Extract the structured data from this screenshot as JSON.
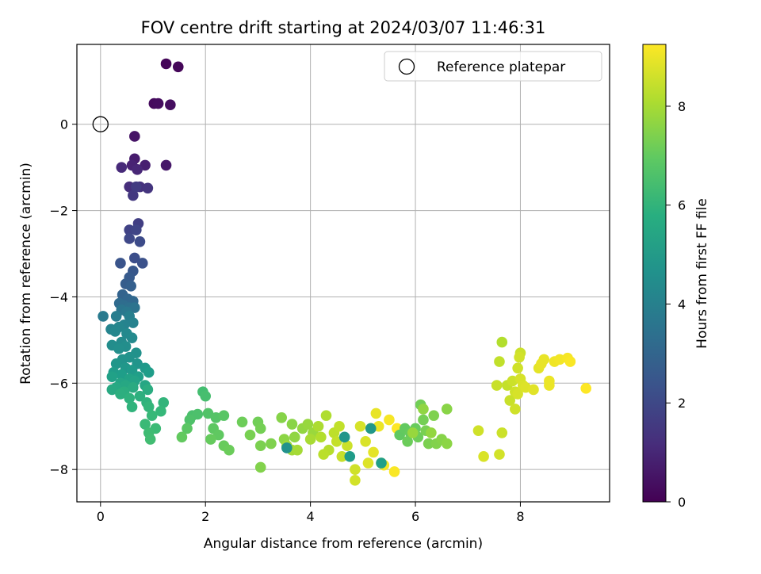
{
  "chart_data": {
    "type": "scatter",
    "title": "FOV centre drift starting at 2024/03/07 11:46:31",
    "xlabel": "Angular distance from reference (arcmin)",
    "ylabel": "Rotation from reference (arcmin)",
    "xlim": [
      -0.45,
      9.7
    ],
    "ylim": [
      -8.75,
      1.85
    ],
    "xticks": [
      0,
      2,
      4,
      6,
      8
    ],
    "yticks": [
      -8,
      -6,
      -4,
      -2,
      0
    ],
    "xtick_labels": [
      "0",
      "2",
      "4",
      "6",
      "8"
    ],
    "ytick_labels": [
      "−8",
      "−6",
      "−4",
      "−2",
      "0"
    ],
    "grid": true,
    "legend": {
      "position": "top-right",
      "entries": [
        "Reference platepar"
      ]
    },
    "colorbar": {
      "label": "Hours from first FF file",
      "colormap": "viridis",
      "range": [
        0,
        9.25
      ],
      "ticks": [
        0,
        2,
        4,
        6,
        8
      ],
      "tick_labels": [
        "0",
        "2",
        "4",
        "6",
        "8"
      ]
    },
    "reference_point": {
      "x": 0,
      "y": 0,
      "label": "Reference platepar"
    },
    "series": [
      {
        "color_by": "Hours from first FF file",
        "points": [
          {
            "x": 1.25,
            "y": 1.4,
            "c": 0.1
          },
          {
            "x": 1.48,
            "y": 1.33,
            "c": 0.15
          },
          {
            "x": 1.02,
            "y": 0.48,
            "c": 0.25
          },
          {
            "x": 1.1,
            "y": 0.48,
            "c": 0.3
          },
          {
            "x": 1.33,
            "y": 0.45,
            "c": 0.35
          },
          {
            "x": 0.65,
            "y": -0.28,
            "c": 0.5
          },
          {
            "x": 1.25,
            "y": -0.95,
            "c": 0.6
          },
          {
            "x": 0.65,
            "y": -0.8,
            "c": 0.7
          },
          {
            "x": 0.85,
            "y": -0.95,
            "c": 0.8
          },
          {
            "x": 0.6,
            "y": -0.95,
            "c": 0.9
          },
          {
            "x": 0.7,
            "y": -1.05,
            "c": 1.0
          },
          {
            "x": 0.4,
            "y": -1.0,
            "c": 1.1
          },
          {
            "x": 0.55,
            "y": -1.45,
            "c": 1.2
          },
          {
            "x": 0.75,
            "y": -1.45,
            "c": 1.3
          },
          {
            "x": 0.9,
            "y": -1.48,
            "c": 1.4
          },
          {
            "x": 0.62,
            "y": -1.65,
            "c": 1.5
          },
          {
            "x": 0.68,
            "y": -1.45,
            "c": 1.6
          },
          {
            "x": 0.72,
            "y": -2.3,
            "c": 1.7
          },
          {
            "x": 0.55,
            "y": -2.45,
            "c": 1.8
          },
          {
            "x": 0.68,
            "y": -2.45,
            "c": 1.9
          },
          {
            "x": 0.55,
            "y": -2.65,
            "c": 2.0
          },
          {
            "x": 0.75,
            "y": -2.72,
            "c": 2.1
          },
          {
            "x": 0.65,
            "y": -3.1,
            "c": 2.2
          },
          {
            "x": 0.8,
            "y": -3.22,
            "c": 2.3
          },
          {
            "x": 0.38,
            "y": -3.22,
            "c": 2.4
          },
          {
            "x": 0.62,
            "y": -3.4,
            "c": 2.5
          },
          {
            "x": 0.55,
            "y": -3.55,
            "c": 2.6
          },
          {
            "x": 0.48,
            "y": -3.7,
            "c": 2.7
          },
          {
            "x": 0.58,
            "y": -3.75,
            "c": 2.8
          },
          {
            "x": 0.42,
            "y": -3.95,
            "c": 2.9
          },
          {
            "x": 0.52,
            "y": -4.05,
            "c": 3.0
          },
          {
            "x": 0.62,
            "y": -4.1,
            "c": 3.1
          },
          {
            "x": 0.36,
            "y": -4.15,
            "c": 3.2
          },
          {
            "x": 0.45,
            "y": -4.2,
            "c": 3.3
          },
          {
            "x": 0.55,
            "y": -4.25,
            "c": 3.4
          },
          {
            "x": 0.65,
            "y": -4.25,
            "c": 3.5
          },
          {
            "x": 0.4,
            "y": -4.3,
            "c": 3.6
          },
          {
            "x": 0.5,
            "y": -4.35,
            "c": 3.7
          },
          {
            "x": 0.05,
            "y": -4.45,
            "c": 3.8
          },
          {
            "x": 0.3,
            "y": -4.45,
            "c": 3.9
          },
          {
            "x": 0.55,
            "y": -4.45,
            "c": 4.0
          },
          {
            "x": 0.62,
            "y": -4.6,
            "c": 4.1
          },
          {
            "x": 0.45,
            "y": -4.65,
            "c": 4.15
          },
          {
            "x": 0.2,
            "y": -4.75,
            "c": 4.2
          },
          {
            "x": 0.35,
            "y": -4.7,
            "c": 4.25
          },
          {
            "x": 0.28,
            "y": -4.8,
            "c": 4.3
          },
          {
            "x": 0.5,
            "y": -4.85,
            "c": 4.35
          },
          {
            "x": 0.6,
            "y": -4.95,
            "c": 4.4
          },
          {
            "x": 0.4,
            "y": -5.05,
            "c": 4.45
          },
          {
            "x": 0.22,
            "y": -5.12,
            "c": 4.5
          },
          {
            "x": 0.48,
            "y": -5.15,
            "c": 4.55
          },
          {
            "x": 0.35,
            "y": -5.2,
            "c": 4.6
          },
          {
            "x": 0.68,
            "y": -5.3,
            "c": 4.65
          },
          {
            "x": 0.55,
            "y": -5.4,
            "c": 4.7
          },
          {
            "x": 0.42,
            "y": -5.45,
            "c": 4.75
          },
          {
            "x": 0.7,
            "y": -5.55,
            "c": 4.8
          },
          {
            "x": 0.3,
            "y": -5.55,
            "c": 4.85
          },
          {
            "x": 0.48,
            "y": -5.65,
            "c": 4.9
          },
          {
            "x": 0.85,
            "y": -5.65,
            "c": 4.95
          },
          {
            "x": 0.6,
            "y": -5.7,
            "c": 5.0
          },
          {
            "x": 0.25,
            "y": -5.75,
            "c": 5.05
          },
          {
            "x": 0.92,
            "y": -5.75,
            "c": 5.1
          },
          {
            "x": 0.4,
            "y": -5.8,
            "c": 5.15
          },
          {
            "x": 0.72,
            "y": -5.85,
            "c": 5.2
          },
          {
            "x": 0.22,
            "y": -5.85,
            "c": 5.25
          },
          {
            "x": 0.55,
            "y": -5.9,
            "c": 5.3
          },
          {
            "x": 0.65,
            "y": -5.95,
            "c": 5.35
          },
          {
            "x": 0.38,
            "y": -6.0,
            "c": 5.4
          },
          {
            "x": 0.85,
            "y": -6.05,
            "c": 5.45
          },
          {
            "x": 0.48,
            "y": -6.05,
            "c": 5.5
          },
          {
            "x": 0.3,
            "y": -6.1,
            "c": 5.55
          },
          {
            "x": 0.22,
            "y": -6.15,
            "c": 5.6
          },
          {
            "x": 0.62,
            "y": -6.1,
            "c": 5.65
          },
          {
            "x": 0.9,
            "y": -6.15,
            "c": 5.7
          },
          {
            "x": 0.45,
            "y": -6.2,
            "c": 5.75
          },
          {
            "x": 0.38,
            "y": -6.25,
            "c": 5.8
          },
          {
            "x": 0.75,
            "y": -6.3,
            "c": 5.85
          },
          {
            "x": 0.55,
            "y": -6.35,
            "c": 5.9
          },
          {
            "x": 0.88,
            "y": -6.45,
            "c": 5.95
          },
          {
            "x": 0.6,
            "y": -6.55,
            "c": 6.0
          },
          {
            "x": 1.2,
            "y": -6.45,
            "c": 6.05
          },
          {
            "x": 0.92,
            "y": -6.55,
            "c": 6.1
          },
          {
            "x": 1.15,
            "y": -6.65,
            "c": 6.15
          },
          {
            "x": 0.98,
            "y": -6.75,
            "c": 6.2
          },
          {
            "x": 0.85,
            "y": -6.95,
            "c": 6.25
          },
          {
            "x": 1.05,
            "y": -7.05,
            "c": 6.3
          },
          {
            "x": 0.92,
            "y": -7.15,
            "c": 6.35
          },
          {
            "x": 0.95,
            "y": -7.3,
            "c": 6.4
          },
          {
            "x": 1.95,
            "y": -6.2,
            "c": 6.45
          },
          {
            "x": 2.0,
            "y": -6.3,
            "c": 6.5
          },
          {
            "x": 1.75,
            "y": -6.75,
            "c": 6.55
          },
          {
            "x": 1.85,
            "y": -6.72,
            "c": 6.6
          },
          {
            "x": 1.7,
            "y": -6.85,
            "c": 6.65
          },
          {
            "x": 2.05,
            "y": -6.7,
            "c": 6.7
          },
          {
            "x": 2.2,
            "y": -6.8,
            "c": 6.75
          },
          {
            "x": 2.35,
            "y": -6.75,
            "c": 6.8
          },
          {
            "x": 1.65,
            "y": -7.05,
            "c": 6.85
          },
          {
            "x": 2.15,
            "y": -7.05,
            "c": 6.9
          },
          {
            "x": 2.25,
            "y": -7.2,
            "c": 6.95
          },
          {
            "x": 1.55,
            "y": -7.25,
            "c": 7.0
          },
          {
            "x": 2.1,
            "y": -7.3,
            "c": 7.05
          },
          {
            "x": 2.35,
            "y": -7.45,
            "c": 7.1
          },
          {
            "x": 2.45,
            "y": -7.55,
            "c": 7.15
          },
          {
            "x": 2.7,
            "y": -6.9,
            "c": 7.2
          },
          {
            "x": 3.0,
            "y": -6.9,
            "c": 7.25
          },
          {
            "x": 3.05,
            "y": -7.05,
            "c": 7.3
          },
          {
            "x": 2.85,
            "y": -7.2,
            "c": 7.35
          },
          {
            "x": 3.05,
            "y": -7.45,
            "c": 7.4
          },
          {
            "x": 3.25,
            "y": -7.4,
            "c": 7.45
          },
          {
            "x": 3.05,
            "y": -7.95,
            "c": 7.5
          },
          {
            "x": 3.45,
            "y": -6.8,
            "c": 7.55
          },
          {
            "x": 3.65,
            "y": -6.95,
            "c": 7.6
          },
          {
            "x": 3.5,
            "y": -7.3,
            "c": 7.65
          },
          {
            "x": 3.7,
            "y": -7.25,
            "c": 7.7
          },
          {
            "x": 3.85,
            "y": -7.05,
            "c": 7.75
          },
          {
            "x": 3.95,
            "y": -6.95,
            "c": 7.8
          },
          {
            "x": 4.05,
            "y": -7.15,
            "c": 7.85
          },
          {
            "x": 3.55,
            "y": -7.45,
            "c": 7.9
          },
          {
            "x": 3.65,
            "y": -7.55,
            "c": 7.95
          },
          {
            "x": 3.75,
            "y": -7.55,
            "c": 8.0
          },
          {
            "x": 4.0,
            "y": -7.3,
            "c": 8.05
          },
          {
            "x": 4.15,
            "y": -7.0,
            "c": 8.1
          },
          {
            "x": 4.3,
            "y": -6.75,
            "c": 8.15
          },
          {
            "x": 4.2,
            "y": -7.25,
            "c": 8.2
          },
          {
            "x": 4.35,
            "y": -7.55,
            "c": 8.25
          },
          {
            "x": 4.25,
            "y": -7.65,
            "c": 8.3
          },
          {
            "x": 4.45,
            "y": -7.15,
            "c": 8.35
          },
          {
            "x": 4.55,
            "y": -7.0,
            "c": 8.4
          },
          {
            "x": 4.5,
            "y": -7.35,
            "c": 8.45
          },
          {
            "x": 4.6,
            "y": -7.7,
            "c": 8.5
          },
          {
            "x": 4.7,
            "y": -7.45,
            "c": 8.55
          },
          {
            "x": 4.85,
            "y": -8.0,
            "c": 8.6
          },
          {
            "x": 4.85,
            "y": -8.25,
            "c": 8.65
          },
          {
            "x": 4.95,
            "y": -7.0,
            "c": 8.7
          },
          {
            "x": 5.05,
            "y": -7.35,
            "c": 8.75
          },
          {
            "x": 5.1,
            "y": -7.85,
            "c": 8.8
          },
          {
            "x": 5.15,
            "y": -7.05,
            "c": 8.85
          },
          {
            "x": 5.2,
            "y": -7.6,
            "c": 8.9
          },
          {
            "x": 5.25,
            "y": -6.7,
            "c": 8.95
          },
          {
            "x": 5.3,
            "y": -7.0,
            "c": 9.0
          },
          {
            "x": 5.35,
            "y": -7.85,
            "c": 9.05
          },
          {
            "x": 5.4,
            "y": -7.9,
            "c": 9.1
          },
          {
            "x": 5.5,
            "y": -6.85,
            "c": 9.15
          },
          {
            "x": 5.6,
            "y": -8.05,
            "c": 9.2
          },
          {
            "x": 5.65,
            "y": -7.05,
            "c": 9.25
          },
          {
            "x": 5.15,
            "y": -7.05,
            "c": 4.9
          },
          {
            "x": 5.35,
            "y": -7.85,
            "c": 5.2
          },
          {
            "x": 4.75,
            "y": -7.7,
            "c": 5.05
          },
          {
            "x": 4.65,
            "y": -7.25,
            "c": 4.85
          },
          {
            "x": 3.55,
            "y": -7.5,
            "c": 4.7
          },
          {
            "x": 5.7,
            "y": -7.2,
            "c": 6.95
          },
          {
            "x": 5.8,
            "y": -7.05,
            "c": 7.0
          },
          {
            "x": 5.9,
            "y": -7.15,
            "c": 7.05
          },
          {
            "x": 6.0,
            "y": -7.05,
            "c": 7.1
          },
          {
            "x": 5.85,
            "y": -7.35,
            "c": 7.15
          },
          {
            "x": 6.05,
            "y": -7.25,
            "c": 7.2
          },
          {
            "x": 6.1,
            "y": -6.5,
            "c": 7.25
          },
          {
            "x": 6.15,
            "y": -6.85,
            "c": 7.3
          },
          {
            "x": 6.2,
            "y": -7.1,
            "c": 7.35
          },
          {
            "x": 6.25,
            "y": -7.4,
            "c": 7.4
          },
          {
            "x": 6.35,
            "y": -6.75,
            "c": 7.45
          },
          {
            "x": 6.4,
            "y": -7.4,
            "c": 7.5
          },
          {
            "x": 6.5,
            "y": -7.3,
            "c": 7.55
          },
          {
            "x": 6.6,
            "y": -6.6,
            "c": 7.6
          },
          {
            "x": 6.6,
            "y": -7.4,
            "c": 7.65
          },
          {
            "x": 6.15,
            "y": -6.6,
            "c": 7.7
          },
          {
            "x": 6.3,
            "y": -7.15,
            "c": 7.75
          },
          {
            "x": 5.95,
            "y": -7.15,
            "c": 7.8
          },
          {
            "x": 7.2,
            "y": -7.1,
            "c": 8.6
          },
          {
            "x": 7.3,
            "y": -7.7,
            "c": 8.75
          },
          {
            "x": 7.55,
            "y": -6.05,
            "c": 8.5
          },
          {
            "x": 7.6,
            "y": -5.5,
            "c": 8.4
          },
          {
            "x": 7.65,
            "y": -7.15,
            "c": 8.55
          },
          {
            "x": 7.6,
            "y": -7.65,
            "c": 8.65
          },
          {
            "x": 7.65,
            "y": -5.05,
            "c": 8.2
          },
          {
            "x": 7.75,
            "y": -6.05,
            "c": 8.45
          },
          {
            "x": 7.8,
            "y": -6.4,
            "c": 8.5
          },
          {
            "x": 7.85,
            "y": -5.95,
            "c": 8.55
          },
          {
            "x": 7.9,
            "y": -6.2,
            "c": 8.6
          },
          {
            "x": 7.9,
            "y": -6.6,
            "c": 8.6
          },
          {
            "x": 7.95,
            "y": -6.25,
            "c": 8.7
          },
          {
            "x": 8.0,
            "y": -5.9,
            "c": 8.7
          },
          {
            "x": 7.95,
            "y": -5.65,
            "c": 8.6
          },
          {
            "x": 8.0,
            "y": -5.3,
            "c": 8.55
          },
          {
            "x": 7.98,
            "y": -5.4,
            "c": 8.65
          },
          {
            "x": 8.05,
            "y": -6.05,
            "c": 8.75
          },
          {
            "x": 8.1,
            "y": -6.1,
            "c": 8.8
          },
          {
            "x": 8.25,
            "y": -6.15,
            "c": 8.85
          },
          {
            "x": 8.35,
            "y": -5.65,
            "c": 8.9
          },
          {
            "x": 8.45,
            "y": -5.45,
            "c": 8.95
          },
          {
            "x": 8.55,
            "y": -5.95,
            "c": 9.0
          },
          {
            "x": 8.55,
            "y": -6.05,
            "c": 9.0
          },
          {
            "x": 8.65,
            "y": -5.5,
            "c": 9.05
          },
          {
            "x": 8.75,
            "y": -5.45,
            "c": 9.1
          },
          {
            "x": 8.9,
            "y": -5.42,
            "c": 9.15
          },
          {
            "x": 8.95,
            "y": -5.5,
            "c": 9.2
          },
          {
            "x": 9.25,
            "y": -6.12,
            "c": 9.25
          },
          {
            "x": 8.4,
            "y": -5.55,
            "c": 8.95
          }
        ]
      }
    ]
  }
}
